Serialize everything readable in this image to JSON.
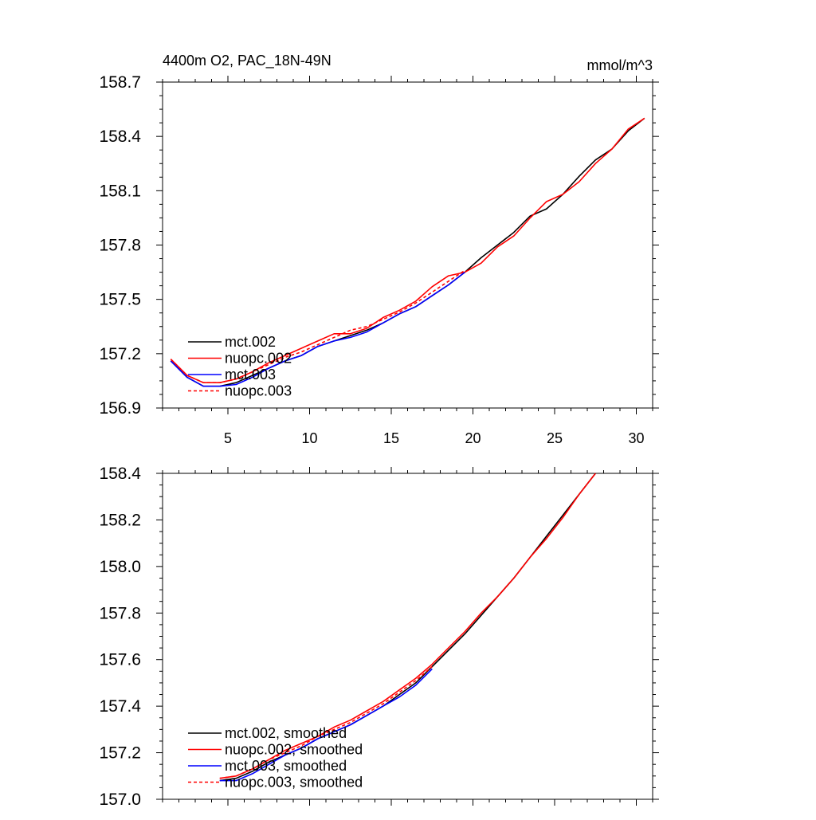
{
  "figure": {
    "left_title": "4400m O2, PAC_18N-49N",
    "right_title": "mmol/m^3"
  },
  "chart_data": [
    {
      "type": "line",
      "title": "4400m O2, PAC_18N-49N",
      "units": "mmol/m^3",
      "xlabel": "",
      "ylabel": "",
      "xlim": [
        1,
        31
      ],
      "ylim": [
        156.9,
        158.7
      ],
      "xticks": [
        5,
        10,
        15,
        20,
        25,
        30
      ],
      "yticks": [
        156.9,
        157.2,
        157.5,
        157.8,
        158.1,
        158.4,
        158.7
      ],
      "ytick_labels": [
        "156.9",
        "157.2",
        "157.5",
        "157.8",
        "158.1",
        "158.4",
        "158.7"
      ],
      "show_x_tick_labels": true,
      "grid": false,
      "legend_position": "bottom-left",
      "series": [
        {
          "name": "mct.002",
          "color": "#000000",
          "dash": "solid",
          "x": [
            1.5,
            2.5,
            3.5,
            4.5,
            5.5,
            6.5,
            7.5,
            8.5,
            9.5,
            10.5,
            11.5,
            12.5,
            13.5,
            14.5,
            15.5,
            16.5,
            17.5,
            18.5,
            19.5,
            20.5,
            21.5,
            22.5,
            23.5,
            24.5,
            25.5,
            26.5,
            27.5,
            28.5,
            29.5,
            30.5
          ],
          "y": [
            157.16,
            157.07,
            157.02,
            157.02,
            157.04,
            157.08,
            157.12,
            157.16,
            157.19,
            157.24,
            157.27,
            157.3,
            157.33,
            157.37,
            157.42,
            157.46,
            157.52,
            157.58,
            157.65,
            157.73,
            157.8,
            157.87,
            157.96,
            158.0,
            158.08,
            158.18,
            158.27,
            158.33,
            158.43,
            158.5
          ]
        },
        {
          "name": "nuopc.002",
          "color": "#ff0000",
          "dash": "solid",
          "x": [
            1.5,
            2.5,
            3.5,
            4.5,
            5.5,
            6.5,
            7.5,
            8.5,
            9.5,
            10.5,
            11.5,
            12.5,
            13.5,
            14.5,
            15.5,
            16.5,
            17.5,
            18.5,
            19.5,
            20.5,
            21.5,
            22.5,
            23.5,
            24.5,
            25.5,
            26.5,
            27.5,
            28.5,
            29.5,
            30.5
          ],
          "y": [
            157.17,
            157.08,
            157.04,
            157.04,
            157.06,
            157.1,
            157.15,
            157.19,
            157.23,
            157.27,
            157.31,
            157.31,
            157.34,
            157.4,
            157.44,
            157.49,
            157.57,
            157.63,
            157.65,
            157.7,
            157.79,
            157.85,
            157.95,
            158.04,
            158.08,
            158.15,
            158.25,
            158.33,
            158.44,
            158.5
          ]
        },
        {
          "name": "mct.003",
          "color": "#0000ff",
          "dash": "solid",
          "x": [
            1.5,
            2.5,
            3.5,
            4.5,
            5.5,
            6.5,
            7.5,
            8.5,
            9.5,
            10.5,
            11.5,
            12.5,
            13.5,
            14.5,
            15.5,
            16.5,
            17.5,
            18.5,
            19.5
          ],
          "y": [
            157.16,
            157.07,
            157.02,
            157.02,
            157.03,
            157.07,
            157.12,
            157.16,
            157.19,
            157.24,
            157.27,
            157.29,
            157.32,
            157.37,
            157.42,
            157.46,
            157.52,
            157.58,
            157.65
          ]
        },
        {
          "name": "nuopc.003",
          "color": "#ff0000",
          "dash": "dashed",
          "x": [
            1.5,
            2.5,
            3.5,
            4.5,
            5.5,
            6.5,
            7.5,
            8.5,
            9.5,
            10.5,
            11.5,
            12.5,
            13.5,
            14.5,
            15.5,
            16.5,
            17.5,
            18.5,
            19.5
          ],
          "y": [
            157.17,
            157.08,
            157.04,
            157.04,
            157.06,
            157.1,
            157.14,
            157.18,
            157.21,
            157.25,
            157.29,
            157.33,
            157.35,
            157.39,
            157.43,
            157.48,
            157.54,
            157.6,
            157.66
          ]
        }
      ]
    },
    {
      "type": "line",
      "title": "",
      "xlabel": "",
      "ylabel": "",
      "xlim": [
        1,
        31
      ],
      "ylim": [
        157.0,
        158.4
      ],
      "xticks": [
        5,
        10,
        15,
        20,
        25,
        30
      ],
      "yticks": [
        157.0,
        157.2,
        157.4,
        157.6,
        157.8,
        158.0,
        158.2,
        158.4
      ],
      "ytick_labels": [
        "157.0",
        "157.2",
        "157.4",
        "157.6",
        "157.8",
        "158.0",
        "158.2",
        "158.4"
      ],
      "show_x_tick_labels": false,
      "grid": false,
      "legend_position": "bottom-left",
      "series": [
        {
          "name": "mct.002, smoothed",
          "color": "#000000",
          "dash": "solid",
          "x": [
            4.5,
            5.5,
            6.5,
            7.5,
            8.5,
            9.5,
            10.5,
            11.5,
            12.5,
            13.5,
            14.5,
            15.5,
            16.5,
            17.5,
            18.5,
            19.5,
            20.5,
            21.5,
            22.5,
            23.5,
            24.5,
            25.5,
            26.5,
            27.5
          ],
          "y": [
            157.08,
            157.09,
            157.12,
            157.16,
            157.19,
            157.22,
            157.26,
            157.29,
            157.32,
            157.36,
            157.4,
            157.45,
            157.5,
            157.57,
            157.64,
            157.71,
            157.79,
            157.87,
            157.95,
            158.04,
            158.13,
            158.22,
            158.31,
            158.4
          ]
        },
        {
          "name": "nuopc.002, smoothed",
          "color": "#ff0000",
          "dash": "solid",
          "x": [
            4.5,
            5.5,
            6.5,
            7.5,
            8.5,
            9.5,
            10.5,
            11.5,
            12.5,
            13.5,
            14.5,
            15.5,
            16.5,
            17.5,
            18.5,
            19.5,
            20.5,
            21.5,
            22.5,
            23.5,
            24.5,
            25.5,
            26.5,
            27.5
          ],
          "y": [
            157.09,
            157.1,
            157.13,
            157.17,
            157.21,
            157.24,
            157.27,
            157.31,
            157.34,
            157.38,
            157.42,
            157.47,
            157.52,
            157.58,
            157.65,
            157.72,
            157.8,
            157.87,
            157.95,
            158.04,
            158.12,
            158.21,
            158.31,
            158.4
          ]
        },
        {
          "name": "mct.003, smoothed",
          "color": "#0000ff",
          "dash": "solid",
          "x": [
            4.5,
            5.5,
            6.5,
            7.5,
            8.5,
            9.5,
            10.5,
            11.5,
            12.5,
            13.5,
            14.5,
            15.5,
            16.5,
            17.5
          ],
          "y": [
            157.08,
            157.08,
            157.11,
            157.15,
            157.19,
            157.22,
            157.26,
            157.29,
            157.32,
            157.36,
            157.4,
            157.44,
            157.49,
            157.56
          ]
        },
        {
          "name": "nuopc.003, smoothed",
          "color": "#ff0000",
          "dash": "dashed",
          "x": [
            4.5,
            5.5,
            6.5,
            7.5,
            8.5,
            9.5,
            10.5,
            11.5,
            12.5,
            13.5,
            14.5,
            15.5,
            16.5,
            17.5
          ],
          "y": [
            157.09,
            157.1,
            157.13,
            157.17,
            157.2,
            157.23,
            157.27,
            157.3,
            157.33,
            157.37,
            157.41,
            157.46,
            157.51,
            157.57
          ]
        }
      ]
    }
  ]
}
